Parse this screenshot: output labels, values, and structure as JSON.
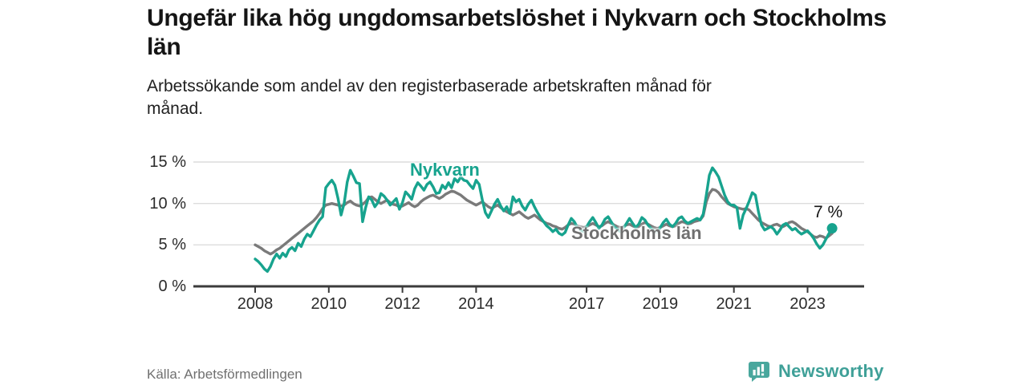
{
  "chart_data": {
    "type": "line",
    "title": "Ungefär lika hög ungdomsarbetslöshet i Nykvarn och Stockholms län",
    "subtitle": "Arbetssökande som andel av den registerbaserade arbetskraften månad för månad.",
    "x_start": "2008-01",
    "x_step_months": 1,
    "ylim": [
      0,
      15
    ],
    "grid": "horizontal",
    "legend": "inline-labels",
    "y_ticks": [
      {
        "label": "0 %",
        "value": 0
      },
      {
        "label": "5 %",
        "value": 5
      },
      {
        "label": "10 %",
        "value": 10
      },
      {
        "label": "15 %",
        "value": 15
      }
    ],
    "x_ticks": [
      {
        "label": "2008",
        "year": 2008
      },
      {
        "label": "2010",
        "year": 2010
      },
      {
        "label": "2012",
        "year": 2012
      },
      {
        "label": "2014",
        "year": 2014
      },
      {
        "label": "2017",
        "year": 2017
      },
      {
        "label": "2019",
        "year": 2019
      },
      {
        "label": "2021",
        "year": 2021
      },
      {
        "label": "2023",
        "year": 2023
      }
    ],
    "series": [
      {
        "name": "Nykvarn",
        "color": "#17a38e",
        "values": [
          3.3,
          3.0,
          2.6,
          2.1,
          1.8,
          2.4,
          3.3,
          3.9,
          3.4,
          4.0,
          3.6,
          4.4,
          4.7,
          4.3,
          5.2,
          4.8,
          5.7,
          6.3,
          6.0,
          6.7,
          7.4,
          8.0,
          8.4,
          11.9,
          12.4,
          12.8,
          12.2,
          10.6,
          8.6,
          10.0,
          12.6,
          14.0,
          13.3,
          12.5,
          12.4,
          7.8,
          9.5,
          10.8,
          10.4,
          9.6,
          10.1,
          11.2,
          10.9,
          10.4,
          9.8,
          10.2,
          10.6,
          9.3,
          10.1,
          11.4,
          11.0,
          10.5,
          11.8,
          12.5,
          12.1,
          11.6,
          12.3,
          12.6,
          12.0,
          11.2,
          11.3,
          12.2,
          11.8,
          12.5,
          11.9,
          13.0,
          12.6,
          13.2,
          12.8,
          12.7,
          12.2,
          11.8,
          12.8,
          12.3,
          10.5,
          8.9,
          8.3,
          9.1,
          9.9,
          10.5,
          9.7,
          9.1,
          9.6,
          8.8,
          10.8,
          10.2,
          10.5,
          9.7,
          9.2,
          9.9,
          10.4,
          9.6,
          8.9,
          8.3,
          7.8,
          7.3,
          7.0,
          6.6,
          6.9,
          6.4,
          6.2,
          6.5,
          7.4,
          8.2,
          7.8,
          7.1,
          6.8,
          6.6,
          7.2,
          7.8,
          8.3,
          7.7,
          7.0,
          7.4,
          8.1,
          8.4,
          7.8,
          7.2,
          6.9,
          6.6,
          7.0,
          7.6,
          8.2,
          7.6,
          7.1,
          7.5,
          8.3,
          8.0,
          7.4,
          7.0,
          6.7,
          6.5,
          7.1,
          7.7,
          8.1,
          7.5,
          7.2,
          7.6,
          8.2,
          8.4,
          7.9,
          7.6,
          7.8,
          8.0,
          8.2,
          8.0,
          8.7,
          11.0,
          13.4,
          14.3,
          13.8,
          13.2,
          12.1,
          11.0,
          10.2,
          9.8,
          9.8,
          9.5,
          7.0,
          8.6,
          9.4,
          10.3,
          11.3,
          11.0,
          9.0,
          7.4,
          6.8,
          7.0,
          7.2,
          6.9,
          6.3,
          6.8,
          7.4,
          7.6,
          7.2,
          6.8,
          7.0,
          6.6,
          6.3,
          6.5,
          6.7,
          6.3,
          5.8,
          5.1,
          4.6,
          5.0,
          5.7,
          6.4,
          7.0
        ]
      },
      {
        "name": "Stockholms län",
        "color": "#7a7a7a",
        "values": [
          5.0,
          4.8,
          4.6,
          4.3,
          4.1,
          3.9,
          4.1,
          4.4,
          4.6,
          4.9,
          5.2,
          5.5,
          5.8,
          6.1,
          6.4,
          6.7,
          7.0,
          7.3,
          7.6,
          7.9,
          8.3,
          8.8,
          9.4,
          9.8,
          9.9,
          10.0,
          9.9,
          9.8,
          9.7,
          9.8,
          10.1,
          10.3,
          10.0,
          9.8,
          9.7,
          9.9,
          10.2,
          10.7,
          10.8,
          10.5,
          10.2,
          10.0,
          10.2,
          10.4,
          10.1,
          9.9,
          9.8,
          9.6,
          9.7,
          9.9,
          10.1,
          9.8,
          9.6,
          9.8,
          10.2,
          10.5,
          10.7,
          10.9,
          11.0,
          10.8,
          10.6,
          10.8,
          11.1,
          11.3,
          11.5,
          11.4,
          11.2,
          11.0,
          10.7,
          10.4,
          10.2,
          10.0,
          9.8,
          10.0,
          10.2,
          9.9,
          9.6,
          9.4,
          9.6,
          9.8,
          9.5,
          9.2,
          9.0,
          8.8,
          8.6,
          8.8,
          9.0,
          8.7,
          8.4,
          8.2,
          8.4,
          8.6,
          8.3,
          8.0,
          7.8,
          7.6,
          7.5,
          7.3,
          7.2,
          7.0,
          6.9,
          7.1,
          7.4,
          7.6,
          7.5,
          7.3,
          7.2,
          7.1,
          7.2,
          7.4,
          7.6,
          7.4,
          7.2,
          7.3,
          7.6,
          7.8,
          7.6,
          7.4,
          7.2,
          7.1,
          7.2,
          7.4,
          7.5,
          7.3,
          7.1,
          7.2,
          7.5,
          7.7,
          7.5,
          7.3,
          7.1,
          7.0,
          7.1,
          7.3,
          7.5,
          7.3,
          7.2,
          7.3,
          7.6,
          7.8,
          7.7,
          7.5,
          7.6,
          7.8,
          7.9,
          8.0,
          8.5,
          10.2,
          11.2,
          11.7,
          11.6,
          11.3,
          10.8,
          10.4,
          10.0,
          9.8,
          9.6,
          9.5,
          9.4,
          9.3,
          9.4,
          9.2,
          8.8,
          8.4,
          8.0,
          7.7,
          7.5,
          7.3,
          7.2,
          7.4,
          7.5,
          7.3,
          7.2,
          7.4,
          7.7,
          7.8,
          7.6,
          7.3,
          7.0,
          6.8,
          6.6,
          6.3,
          6.0,
          5.9,
          6.1,
          6.0,
          5.8,
          6.1,
          6.4
        ]
      }
    ],
    "end_annotation": {
      "text": "7 %",
      "series": "Nykvarn",
      "value": 7
    }
  },
  "footer": {
    "source": "Källa: Arbetsförmedlingen",
    "brand_name": "Newsworthy",
    "brand_icon": "bar-chart-speech-bubble-icon",
    "brand_color": "#3fa098"
  }
}
